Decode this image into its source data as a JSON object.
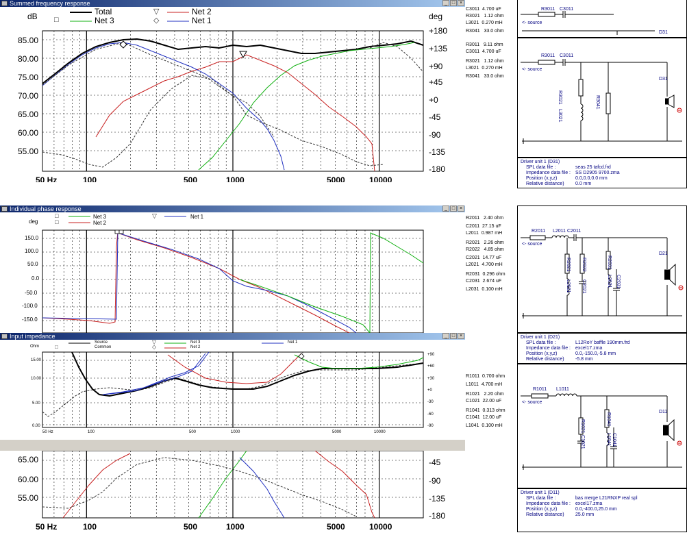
{
  "summed": {
    "title": "Summed frequency response",
    "ylabel_left": "dB",
    "ylabel_right": "deg",
    "legend": {
      "total": "Total",
      "net2": "Net 2",
      "net3": "Net 3",
      "net1": "Net 1"
    },
    "yticks_left": [
      "85.00",
      "80.00",
      "75.00",
      "70.00",
      "65.00",
      "60.00",
      "55.00"
    ],
    "yticks_right": [
      "+180",
      "+135",
      "+90",
      "+45",
      "+0",
      "-45",
      "-90",
      "-135",
      "-180"
    ],
    "xticks": [
      "50 Hz",
      "100",
      "500",
      "1000",
      "5000",
      "10000"
    ]
  },
  "phase": {
    "title": "Individual phase response",
    "ylabel": "deg",
    "legend": {
      "net3": "Net 3",
      "net2": "Net 2",
      "net1": "Net 1"
    },
    "yticks": [
      "150.0",
      "100.0",
      "50.0",
      "0.0",
      "-50.0",
      "-100.0",
      "-150.0"
    ]
  },
  "impedance": {
    "title": "Input impedance",
    "ylabel": "Ohm",
    "legend": {
      "source": "Source",
      "common": "Common",
      "net3": "Net 3",
      "net2": "Net 2",
      "net1": "Net 1"
    },
    "yticks_left": [
      "15.00",
      "10.00",
      "5.00",
      "0.00"
    ],
    "yticks_right": [
      "+90",
      "+60",
      "+30",
      "+0",
      "-30",
      "-60",
      "-90"
    ],
    "xticks": [
      "50 Hz",
      "100",
      "500",
      "1000",
      "5000",
      "10000"
    ]
  },
  "bottom_partial": {
    "yticks_left": [
      "65.00",
      "60.00",
      "55.00"
    ],
    "yticks_right": [
      "-45",
      "-90",
      "-135",
      "-180"
    ],
    "xticks": [
      "50 Hz",
      "100",
      "500",
      "1000",
      "5000",
      "10000"
    ]
  },
  "values_top": [
    {
      "name": "C3011",
      "value": "4.700 uF"
    },
    {
      "name": "R3021",
      "value": "1.12 ohm"
    },
    {
      "name": "L3021",
      "value": "0.270 mH"
    },
    {
      "name": "R3041",
      "value": "33.0 ohm"
    }
  ],
  "values_mid": [
    {
      "name": "R3011",
      "value": "9.11 ohm"
    },
    {
      "name": "C3011",
      "value": "4.700 uF"
    },
    {
      "name": "R3021",
      "value": "1.12 ohm"
    },
    {
      "name": "L3021",
      "value": "0.270 mH"
    },
    {
      "name": "R3041",
      "value": "33.0 ohm"
    }
  ],
  "values_phase": [
    {
      "name": "R2011",
      "value": "2.40 ohm"
    },
    {
      "name": "C2011",
      "value": "27.15 uF"
    },
    {
      "name": "L2011",
      "value": "0.987 mH"
    },
    {
      "name": "R2021",
      "value": "2.26 ohm"
    },
    {
      "name": "R2022",
      "value": "4.85 ohm"
    },
    {
      "name": "C2021",
      "value": "14.77 uF"
    },
    {
      "name": "L2021",
      "value": "4.700 mH"
    },
    {
      "name": "R2031",
      "value": "0.296 ohm"
    },
    {
      "name": "C2031",
      "value": "2.674 uF"
    },
    {
      "name": "L2031",
      "value": "0.100 mH"
    }
  ],
  "values_imp": [
    {
      "name": "R1011",
      "value": "0.700 ohm"
    },
    {
      "name": "L1011",
      "value": "4.700 mH"
    },
    {
      "name": "R1021",
      "value": "2.20 ohm"
    },
    {
      "name": "C1021",
      "value": "22.00 uF"
    },
    {
      "name": "R1041",
      "value": "0.313 ohm"
    },
    {
      "name": "C1041",
      "value": "12.00 uF"
    },
    {
      "name": "L1041",
      "value": "0.100 mH"
    }
  ],
  "schematic": {
    "source_label": "<- source",
    "top": {
      "r": "R3011",
      "c": "C3011",
      "d": "D31"
    },
    "d31": {
      "r1": "R3011",
      "c1": "C3011",
      "r2": "R3021",
      "l2": "L3021",
      "r4": "R3041",
      "d": "D31"
    },
    "d21": {
      "r1": "R2011",
      "l1": "L2011",
      "c1": "C2011",
      "r21": "R2021",
      "r22": "R2022",
      "c21": "C2021",
      "l21": "L2021",
      "r31": "R2031",
      "l31": "L2031",
      "c31": "C2031",
      "d": "D21"
    },
    "d11": {
      "r1": "R1011",
      "l1": "L1011",
      "r21": "R1021",
      "c21": "C1021",
      "r41": "R1041",
      "l41": "L1041",
      "c41": "C1041",
      "d": "D11"
    }
  },
  "driver_d31": {
    "title": "Driver unit 1 (D31)",
    "rows": [
      {
        "k": "SPL data file :",
        "v": "seas 25 tafcd.frd"
      },
      {
        "k": "Impedance data file :",
        "v": "SS D2905 9700.zma"
      },
      {
        "k": "Position (x,y,z)",
        "v": "0.0,0.0,0.0 mm"
      },
      {
        "k": "Relative distance)",
        "v": "0.0 mm"
      }
    ]
  },
  "driver_d21": {
    "title": "Driver unit 1 (D21)",
    "rows": [
      {
        "k": "SPL data file :",
        "v": "L12RoY baffle 190mm.frd"
      },
      {
        "k": "Impedance data file :",
        "v": "excel17.zma"
      },
      {
        "k": "Position (x,y,z)",
        "v": "0.0,-150.0,-5.8 mm"
      },
      {
        "k": "Relative distance)",
        "v": "-5.8 mm"
      }
    ]
  },
  "driver_d11": {
    "title": "Driver unit 1 (D11)",
    "rows": [
      {
        "k": "SPL data file :",
        "v": "bas merge L21RNXP real spl"
      },
      {
        "k": "Impedance data file :",
        "v": "excel17.zma"
      },
      {
        "k": "Position (x,y,z)",
        "v": "0.0,-400.0,25.0 mm"
      },
      {
        "k": "Relative distance)",
        "v": "25.0 mm"
      }
    ]
  },
  "colors": {
    "total": "#000000",
    "net1": "#2030c0",
    "net2": "#c82020",
    "net3": "#10b010",
    "dashed": "#333333",
    "titlebar": "#0a246a"
  }
}
